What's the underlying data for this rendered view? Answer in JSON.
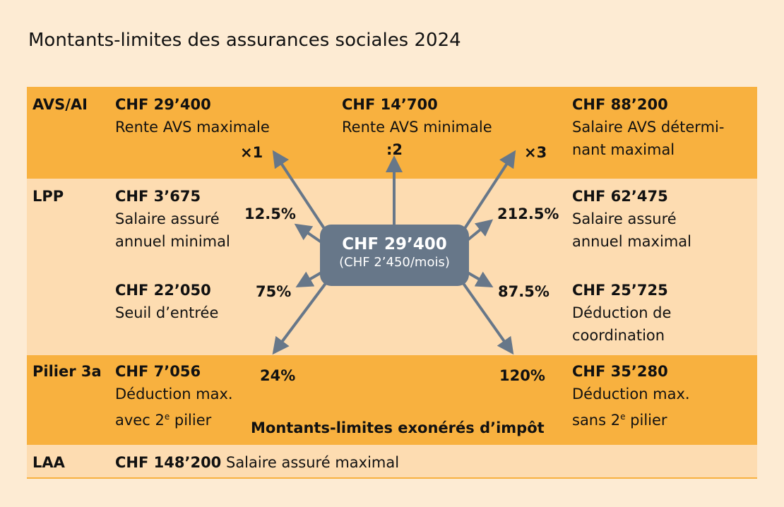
{
  "title": "Montants-limites des assurances sociales 2024",
  "colors": {
    "orange": "#f8b13f",
    "light": "#fddcb1",
    "background": "#fdebd3",
    "slate": "#677789"
  },
  "rows": {
    "avs": {
      "label": "AVS/AI",
      "c1": {
        "amount": "CHF 29’400",
        "desc": [
          "Rente AVS maximale"
        ]
      },
      "c2": {
        "amount": "CHF 14’700",
        "desc": [
          "Rente AVS minimale"
        ]
      },
      "c3": {
        "amount": "CHF 88’200",
        "desc": [
          "Salaire AVS détermi-",
          "nant maximal"
        ]
      }
    },
    "lpp": {
      "label": "LPP",
      "c1": {
        "amount": "CHF 3’675",
        "desc": [
          "Salaire assuré",
          "annuel minimal"
        ]
      },
      "c3": {
        "amount": "CHF 62’475",
        "desc": [
          "Salaire assuré",
          "annuel maximal"
        ]
      },
      "c4": {
        "amount": "CHF 22’050",
        "desc": [
          "Seuil d’entrée"
        ]
      },
      "c5": {
        "amount": "CHF 25’725",
        "desc": [
          "Déduction de",
          "coordination"
        ]
      }
    },
    "p3a": {
      "label": "Pilier 3a",
      "c1": {
        "amount": "CHF 7’056",
        "desc": [
          "Déduction max.",
          "avec 2",
          "e",
          " pilier"
        ]
      },
      "c3": {
        "amount": "CHF 35’280",
        "desc": [
          "Déduction max.",
          "sans 2",
          "e",
          " pilier"
        ]
      },
      "note": "Montants-limites exonérés d’impôt"
    },
    "laa": {
      "label": "LAA",
      "amount": "CHF 148’200",
      "desc": "Salaire assuré maximal"
    }
  },
  "center": {
    "amount": "CHF 29’400",
    "sub": "(CHF 2’450/mois)"
  },
  "factors": {
    "x1": "×1",
    "d2": ":2",
    "x3": "×3",
    "p125": "12.5%",
    "p2125": "212.5%",
    "p75": "75%",
    "p875": "87.5%",
    "p24": "24%",
    "p120": "120%"
  }
}
